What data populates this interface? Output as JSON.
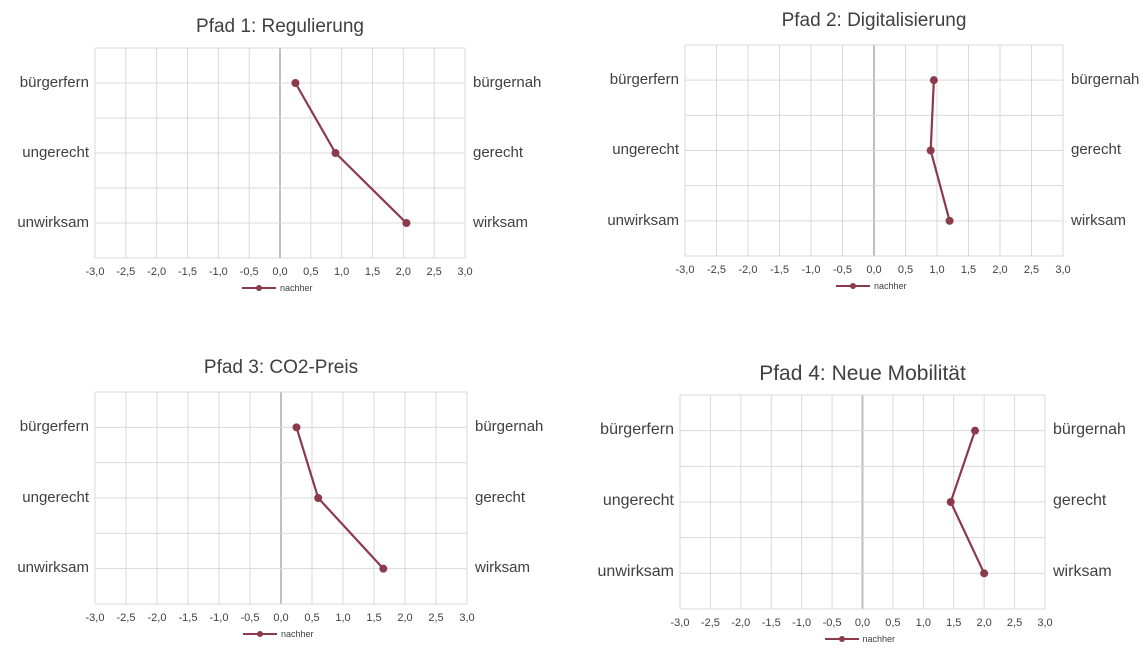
{
  "chart_data": [
    {
      "type": "line",
      "title": "Pfad 1: Regulierung",
      "x_ticks": [
        "-3,0",
        "-2,5",
        "-2,0",
        "-1,5",
        "-1,0",
        "-0,5",
        "0,0",
        "0,5",
        "1,0",
        "1,5",
        "2,0",
        "2,5",
        "3,0"
      ],
      "xlim": [
        -3,
        3
      ],
      "categories_left": [
        "bürgerfern",
        "ungerecht",
        "unwirksam"
      ],
      "categories_right": [
        "bürgernah",
        "gerecht",
        "wirksam"
      ],
      "series": [
        {
          "name": "nachher",
          "values": [
            0.25,
            0.9,
            2.05
          ]
        }
      ],
      "legend": "bottom",
      "grid": true
    },
    {
      "type": "line",
      "title": "Pfad 2: Digitalisierung",
      "x_ticks": [
        "-3,0",
        "-2,5",
        "-2,0",
        "-1,5",
        "-1,0",
        "-0,5",
        "0,0",
        "0,5",
        "1,0",
        "1,5",
        "2,0",
        "2,5",
        "3,0"
      ],
      "xlim": [
        -3,
        3
      ],
      "categories_left": [
        "bürgerfern",
        "ungerecht",
        "unwirksam"
      ],
      "categories_right": [
        "bürgernah",
        "gerecht",
        "wirksam"
      ],
      "series": [
        {
          "name": "nachher",
          "values": [
            0.95,
            0.9,
            1.2
          ]
        }
      ],
      "legend": "bottom",
      "grid": true
    },
    {
      "type": "line",
      "title": "Pfad 3: CO2-Preis",
      "x_ticks": [
        "-3,0",
        "-2,5",
        "-2,0",
        "-1,5",
        "-1,0",
        "-0,5",
        "0,0",
        "0,5",
        "1,0",
        "1,5",
        "2,0",
        "2,5",
        "3,0"
      ],
      "xlim": [
        -3,
        3
      ],
      "categories_left": [
        "bürgerfern",
        "ungerecht",
        "unwirksam"
      ],
      "categories_right": [
        "bürgernah",
        "gerecht",
        "wirksam"
      ],
      "series": [
        {
          "name": "nachher",
          "values": [
            0.25,
            0.6,
            1.65
          ]
        }
      ],
      "legend": "bottom",
      "grid": true
    },
    {
      "type": "line",
      "title": "Pfad 4: Neue Mobilität",
      "x_ticks": [
        "-3,0",
        "-2,5",
        "-2,0",
        "-1,5",
        "-1,0",
        "-0,5",
        "0,0",
        "0,5",
        "1,0",
        "1,5",
        "2,0",
        "2,5",
        "3,0"
      ],
      "xlim": [
        -3,
        3
      ],
      "categories_left": [
        "bürgerfern",
        "ungerecht",
        "unwirksam"
      ],
      "categories_right": [
        "bürgernah",
        "gerecht",
        "wirksam"
      ],
      "series": [
        {
          "name": "nachher",
          "values": [
            1.85,
            1.45,
            2.0
          ]
        }
      ],
      "legend": "bottom",
      "grid": true
    }
  ],
  "colors": {
    "series": "#8b3a4c",
    "grid": "#d9d9d9",
    "zero_line": "#bfbfbf",
    "text": "#404040"
  }
}
